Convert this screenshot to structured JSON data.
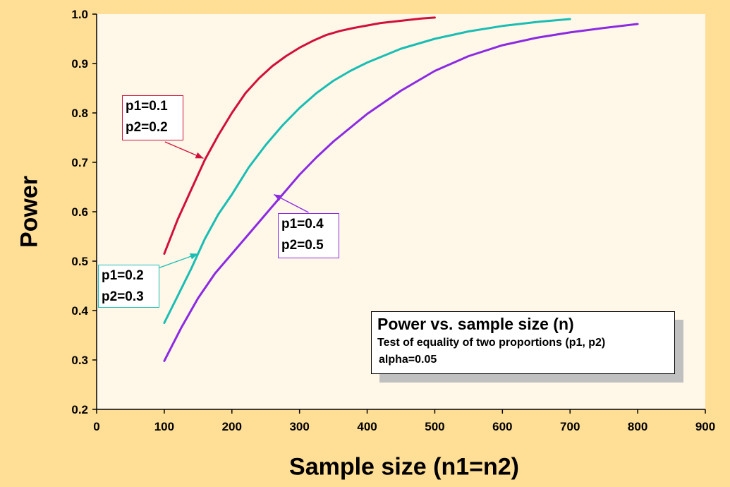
{
  "chart_data": {
    "type": "line",
    "title": "Power vs. sample size (n)",
    "subtitle": "Test of equality of two proportions (p1, p2)",
    "note": "alpha=0.05",
    "xlabel": "Sample size (n1=n2)",
    "ylabel": "Power",
    "xlim": [
      0,
      900
    ],
    "ylim": [
      0.2,
      1.0
    ],
    "xticks": [
      "0",
      "100",
      "200",
      "300",
      "400",
      "500",
      "600",
      "700",
      "800",
      "900"
    ],
    "yticks": [
      "0.2",
      "0.3",
      "0.4",
      "0.5",
      "0.6",
      "0.7",
      "0.8",
      "0.9",
      "1.0"
    ],
    "grid": false,
    "series": [
      {
        "color": "#D0103A",
        "x": [
          100,
          120,
          140,
          160,
          180,
          200,
          220,
          240,
          260,
          280,
          300,
          320,
          340,
          360,
          380,
          400,
          420,
          440,
          460,
          480,
          500
        ],
        "y": [
          0.515,
          0.585,
          0.645,
          0.705,
          0.755,
          0.8,
          0.84,
          0.87,
          0.895,
          0.915,
          0.932,
          0.946,
          0.958,
          0.966,
          0.972,
          0.977,
          0.982,
          0.985,
          0.988,
          0.991,
          0.993
        ]
      },
      {
        "color": "#19BDB4",
        "x": [
          100,
          120,
          140,
          160,
          180,
          200,
          225,
          250,
          275,
          300,
          325,
          350,
          375,
          400,
          450,
          500,
          550,
          600,
          650,
          700
        ],
        "y": [
          0.375,
          0.43,
          0.485,
          0.545,
          0.595,
          0.635,
          0.69,
          0.735,
          0.775,
          0.81,
          0.84,
          0.865,
          0.885,
          0.902,
          0.93,
          0.95,
          0.965,
          0.976,
          0.984,
          0.99
        ]
      },
      {
        "color": "#8A2BE2",
        "x": [
          100,
          125,
          150,
          175,
          200,
          225,
          250,
          275,
          300,
          325,
          350,
          375,
          400,
          450,
          500,
          550,
          600,
          650,
          700,
          750,
          800
        ],
        "y": [
          0.298,
          0.365,
          0.425,
          0.475,
          0.515,
          0.555,
          0.595,
          0.635,
          0.675,
          0.71,
          0.742,
          0.77,
          0.798,
          0.845,
          0.885,
          0.915,
          0.937,
          0.952,
          0.963,
          0.972,
          0.98
        ]
      }
    ],
    "annotations": [
      {
        "lines": [
          "p1=0.1",
          "p2=0.2"
        ],
        "color": "#D0103A",
        "arrow_to": [
          158,
          0.708
        ]
      },
      {
        "lines": [
          "p1=0.2",
          "p2=0.3"
        ],
        "color": "#19BDB4",
        "arrow_to": [
          150,
          0.515
        ]
      },
      {
        "lines": [
          "p1=0.4",
          "p2=0.5"
        ],
        "color": "#8A2BE2",
        "arrow_to": [
          262,
          0.635
        ]
      }
    ],
    "plot_background": "#FFF7E8",
    "page_background": "#FFDE96"
  }
}
